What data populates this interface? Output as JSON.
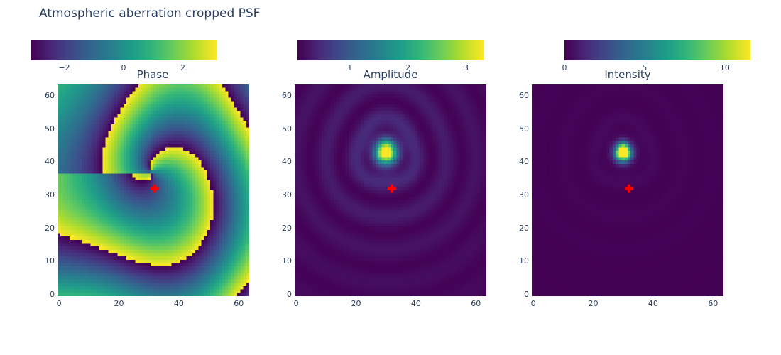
{
  "title": "Atmospheric aberration cropped PSF",
  "colormap": "viridis",
  "marker": {
    "color": "#ff0000",
    "symbol": "cross"
  },
  "chart_data": [
    {
      "type": "heatmap",
      "title": "Phase",
      "colorbar": {
        "range": [
          -3.14,
          3.14
        ],
        "ticks": [
          -2,
          0,
          2
        ]
      },
      "x_range": [
        0,
        63
      ],
      "y_range": [
        0,
        63
      ],
      "x_ticks": [
        0,
        20,
        40,
        60
      ],
      "y_ticks": [
        0,
        10,
        20,
        30,
        40,
        50,
        60
      ],
      "marker_point": [
        32,
        32
      ]
    },
    {
      "type": "heatmap",
      "title": "Amplitude",
      "colorbar": {
        "range": [
          0.1,
          3.3
        ],
        "ticks": [
          1,
          2,
          3
        ]
      },
      "x_range": [
        0,
        63
      ],
      "y_range": [
        0,
        63
      ],
      "x_ticks": [
        0,
        20,
        40,
        60
      ],
      "y_ticks": [
        0,
        10,
        20,
        30,
        40,
        50,
        60
      ],
      "peak": [
        30,
        43
      ],
      "marker_point": [
        32,
        32
      ]
    },
    {
      "type": "heatmap",
      "title": "Intensity",
      "colorbar": {
        "range": [
          0,
          11.6
        ],
        "ticks": [
          0,
          5,
          10
        ]
      },
      "x_range": [
        0,
        63
      ],
      "y_range": [
        0,
        63
      ],
      "x_ticks": [
        0,
        20,
        40,
        60
      ],
      "y_ticks": [
        0,
        10,
        20,
        30,
        40,
        50,
        60
      ],
      "peak": [
        30,
        43
      ],
      "marker_point": [
        32,
        32
      ]
    }
  ]
}
